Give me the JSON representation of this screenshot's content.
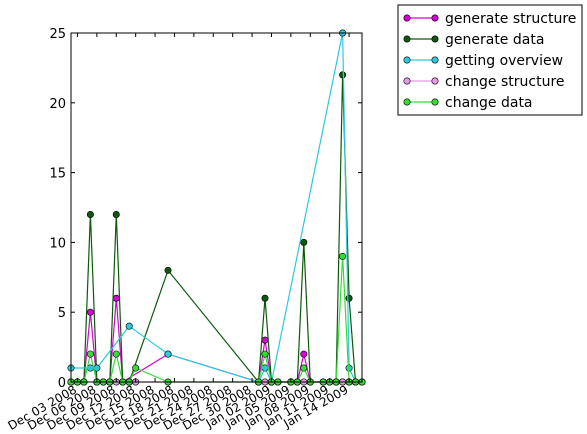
{
  "chart_data": {
    "type": "line",
    "x": [
      "2008-12-02",
      "2008-12-03",
      "2008-12-04",
      "2008-12-05",
      "2008-12-06",
      "2008-12-07",
      "2008-12-08",
      "2008-12-09",
      "2008-12-10",
      "2008-12-11",
      "2008-12-12",
      "2008-12-17",
      "2008-12-31",
      "2009-01-01",
      "2009-01-02",
      "2009-01-03",
      "2009-01-05",
      "2009-01-06",
      "2009-01-07",
      "2009-01-08",
      "2009-01-10",
      "2009-01-11",
      "2009-01-12",
      "2009-01-13",
      "2009-01-14",
      "2009-01-15",
      "2009-01-16"
    ],
    "xlim": [
      "2008-12-02",
      "2009-01-16"
    ],
    "x_tick_labels": [
      "Dec 03 2008",
      "Dec 06 2008",
      "Dec 09 2008",
      "Dec 12 2008",
      "Dec 15 2008",
      "Dec 18 2008",
      "Dec 21 2008",
      "Dec 24 2008",
      "Dec 27 2008",
      "Dec 30 2008",
      "Jan 02 2009",
      "Jan 05 2009",
      "Jan 08 2009",
      "Jan 11 2009",
      "Jan 14 2009"
    ],
    "x_tick_dates": [
      "2008-12-03",
      "2008-12-06",
      "2008-12-09",
      "2008-12-12",
      "2008-12-15",
      "2008-12-18",
      "2008-12-21",
      "2008-12-24",
      "2008-12-27",
      "2008-12-30",
      "2009-01-02",
      "2009-01-05",
      "2009-01-08",
      "2009-01-11",
      "2009-01-14"
    ],
    "ylim": [
      0,
      25
    ],
    "y_ticks": [
      0,
      5,
      10,
      15,
      20,
      25
    ],
    "legend_position": "outside top-right",
    "series": [
      {
        "name": "generate structure",
        "color": "#d400d4",
        "values": [
          0,
          0,
          0,
          5,
          0,
          0,
          0,
          6,
          0,
          null,
          null,
          2,
          0,
          3,
          0,
          0,
          0,
          0,
          2,
          0,
          0,
          0,
          0,
          0,
          0,
          0,
          0
        ]
      },
      {
        "name": "generate data",
        "color": "#0b5a0b",
        "values": [
          0,
          0,
          0,
          12,
          0,
          0,
          0,
          12,
          0,
          0,
          null,
          8,
          0,
          6,
          0,
          0,
          0,
          0,
          10,
          0,
          0,
          0,
          0,
          22,
          6,
          0,
          0
        ]
      },
      {
        "name": "getting overview",
        "color": "#2cc8e0",
        "values": [
          1,
          null,
          null,
          1,
          1,
          null,
          null,
          null,
          null,
          4,
          null,
          2,
          0,
          1,
          0,
          null,
          null,
          null,
          null,
          null,
          null,
          null,
          null,
          25,
          1,
          0,
          null
        ]
      },
      {
        "name": "change structure",
        "color": "#e59ce5",
        "values": [
          null,
          null,
          null,
          null,
          null,
          null,
          0,
          0,
          0,
          0,
          0,
          null,
          null,
          0,
          0,
          null,
          null,
          null,
          0,
          null,
          null,
          null,
          null,
          0,
          0,
          0,
          null
        ]
      },
      {
        "name": "change data",
        "color": "#33dd33",
        "values": [
          0,
          0,
          0,
          2,
          0,
          0,
          0,
          2,
          0,
          0,
          1,
          0,
          0,
          2,
          0,
          0,
          0,
          0,
          1,
          0,
          0,
          0,
          0,
          9,
          0,
          0,
          0
        ]
      }
    ]
  }
}
